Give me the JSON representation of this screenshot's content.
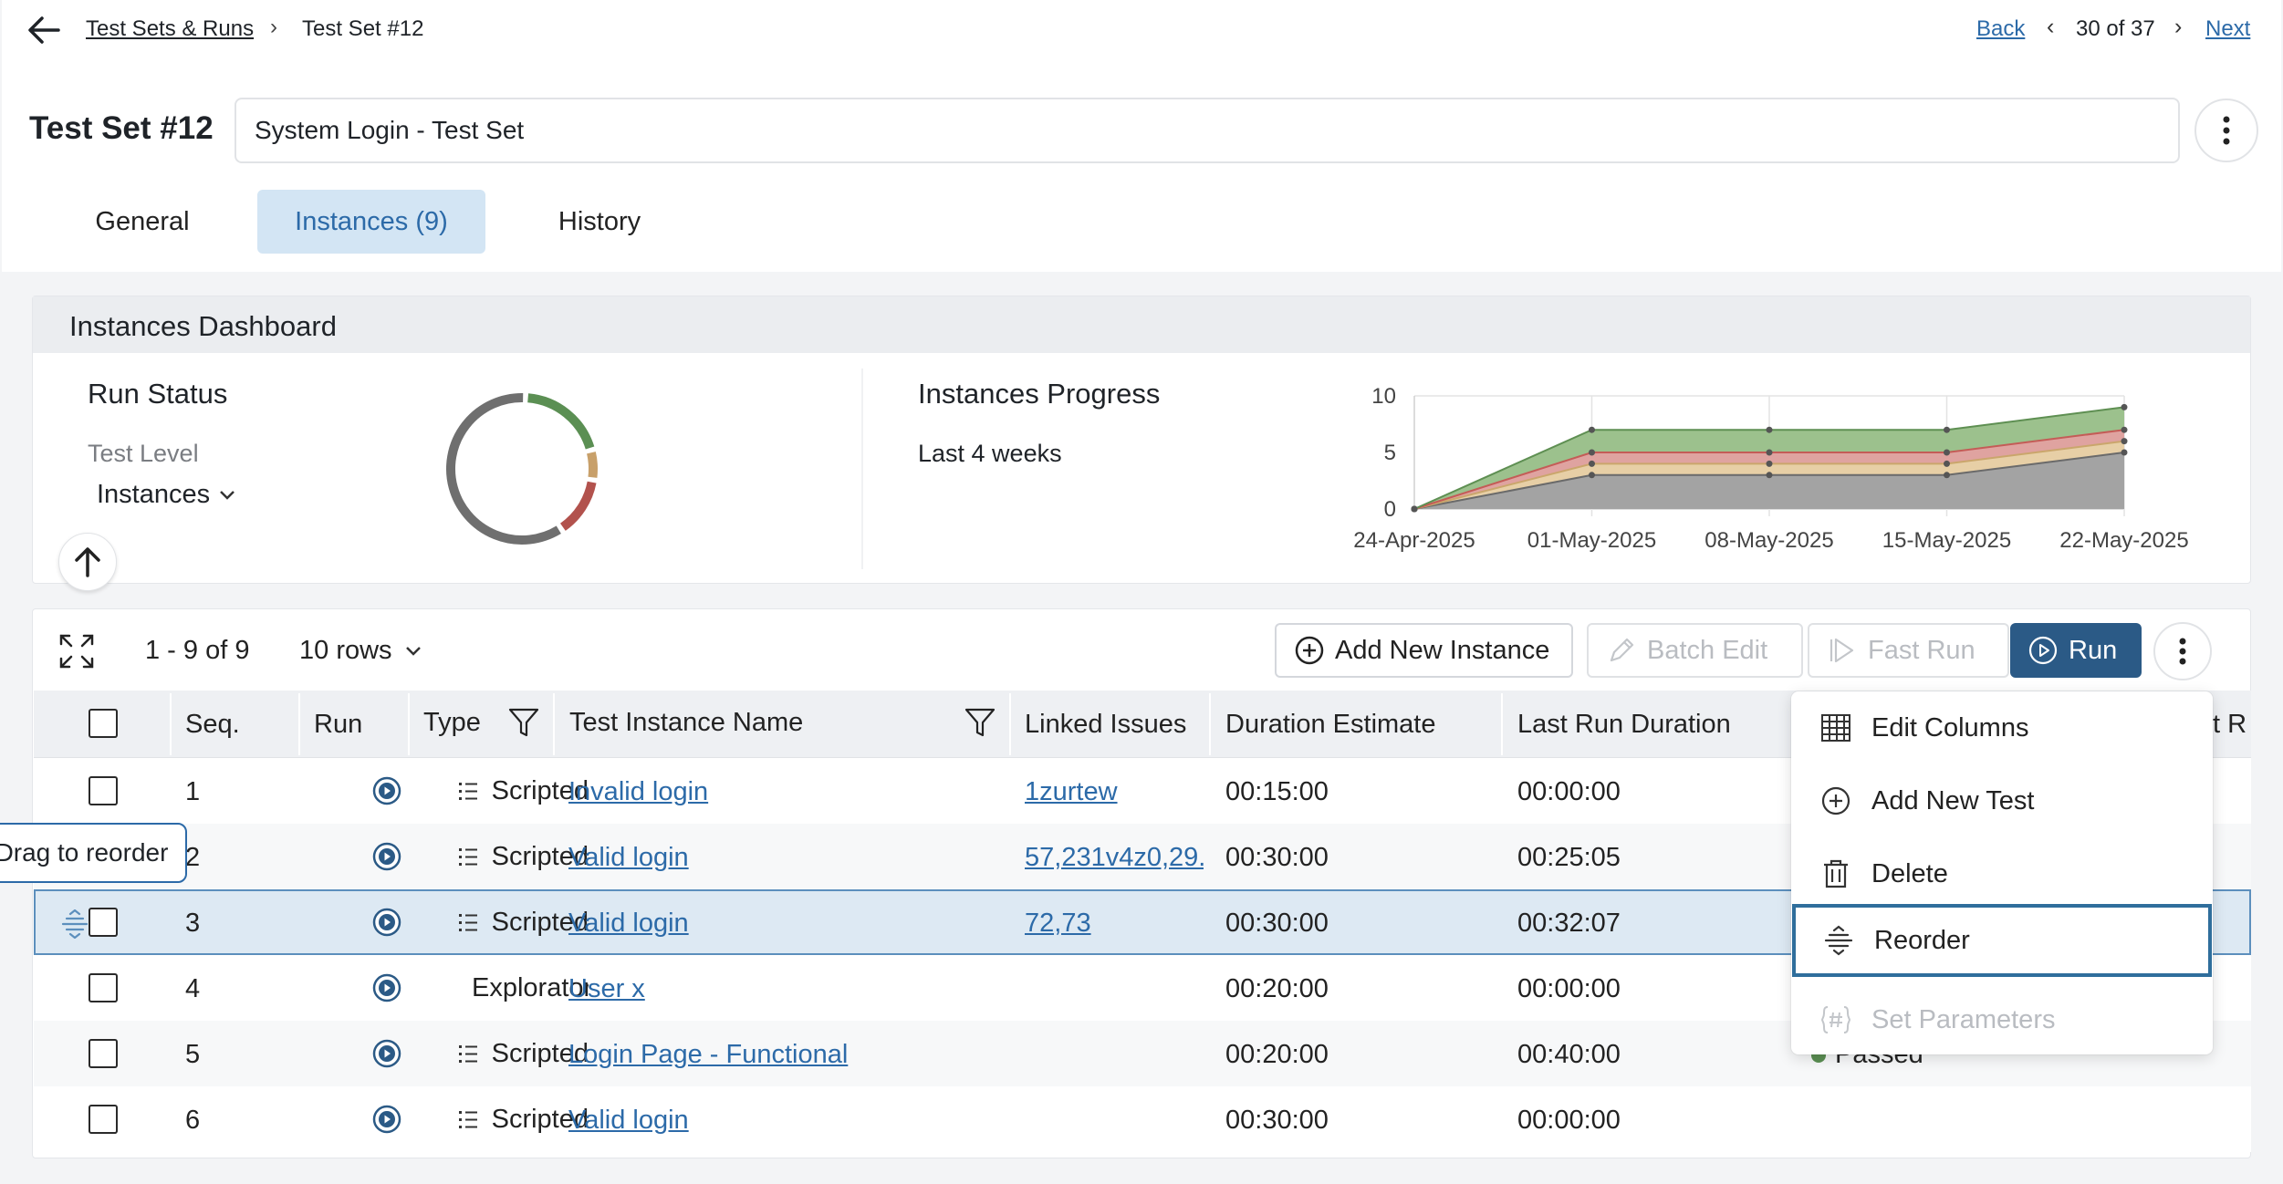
{
  "breadcrumb": {
    "parent": "Test Sets & Runs",
    "current": "Test Set #12"
  },
  "pager": {
    "back": "Back",
    "position": "30 of 37",
    "next": "Next"
  },
  "title": {
    "label": "Test Set #12",
    "name_value": "System Login - Test Set"
  },
  "tabs": [
    {
      "label": "General"
    },
    {
      "label": "Instances (9)"
    },
    {
      "label": "History"
    }
  ],
  "dashboard": {
    "title": "Instances Dashboard",
    "run_status": {
      "title": "Run Status",
      "level_label": "Test Level",
      "level_value": "Instances"
    },
    "progress": {
      "title": "Instances Progress",
      "period": "Last 4 weeks"
    }
  },
  "chart_data": [
    {
      "type": "pie",
      "title": "",
      "values": [
        3,
        1,
        2,
        9
      ],
      "colors": [
        "#5b8f53",
        "#c8a06a",
        "#b2524d",
        "#6f6f6f"
      ]
    },
    {
      "type": "area",
      "title": "",
      "x": [
        "24-Apr-2025",
        "01-May-2025",
        "08-May-2025",
        "15-May-2025",
        "22-May-2025"
      ],
      "yticks": [
        0,
        5,
        10
      ],
      "ylim": [
        0,
        10
      ],
      "stacked": true,
      "colors": [
        "#a3a3a3",
        "#e7cfa6",
        "#dfa3a0",
        "#9cc18d"
      ],
      "series": [
        {
          "values": [
            0,
            3,
            3,
            3,
            5
          ]
        },
        {
          "values": [
            0,
            1,
            1,
            1,
            1
          ]
        },
        {
          "values": [
            0,
            1,
            1,
            1,
            1
          ]
        },
        {
          "values": [
            0,
            2,
            2,
            2,
            2
          ]
        }
      ]
    }
  ],
  "grid": {
    "range": "1 - 9 of 9",
    "rows_select": "10 rows",
    "buttons": {
      "add_instance": "Add New Instance",
      "batch_edit": "Batch Edit",
      "fast_run": "Fast Run",
      "run": "Run"
    },
    "columns": {
      "seq": "Seq.",
      "run": "Run",
      "type": "Type",
      "name": "Test Instance Name",
      "issues": "Linked Issues",
      "estimate": "Duration Estimate",
      "last_duration": "Last Run Duration",
      "last_status": "t R"
    },
    "rows": [
      {
        "seq": "1",
        "type": "Scripted",
        "name": "Invalid login",
        "issues": "1zurtew",
        "estimate": "00:15:00",
        "last": "00:00:00"
      },
      {
        "seq": "2",
        "type": "Scripted",
        "name": "Valid login",
        "issues": "57,231v4z0,29...",
        "estimate": "00:30:00",
        "last": "00:25:05"
      },
      {
        "seq": "3",
        "type": "Scripted",
        "name": "Valid login",
        "issues": "72,73",
        "estimate": "00:30:00",
        "last": "00:32:07"
      },
      {
        "seq": "4",
        "type": "Exploratory",
        "name": "User x",
        "issues": "",
        "estimate": "00:20:00",
        "last": "00:00:00"
      },
      {
        "seq": "5",
        "type": "Scripted",
        "name": "Login Page - Functional",
        "issues": "",
        "estimate": "00:20:00",
        "last": "00:40:00",
        "status": "Passed"
      },
      {
        "seq": "6",
        "type": "Scripted",
        "name": "Valid login",
        "issues": "",
        "estimate": "00:30:00",
        "last": "00:00:00"
      }
    ],
    "tooltip": "Drag to reorder"
  },
  "menu": {
    "items": [
      {
        "label": "Edit Columns",
        "icon": "table-icon"
      },
      {
        "label": "Add New Test",
        "icon": "plus-circle-icon"
      },
      {
        "label": "Delete",
        "icon": "trash-icon"
      },
      {
        "label": "Reorder",
        "icon": "reorder-icon"
      },
      {
        "label": "Set Parameters",
        "icon": "hash-braces-icon"
      }
    ]
  },
  "colors": {
    "accent": "#2c6aa8",
    "run_button": "#2b5a86",
    "selected_tab_bg": "#d3e5f4",
    "selected_row_bg": "#dde9f3"
  }
}
